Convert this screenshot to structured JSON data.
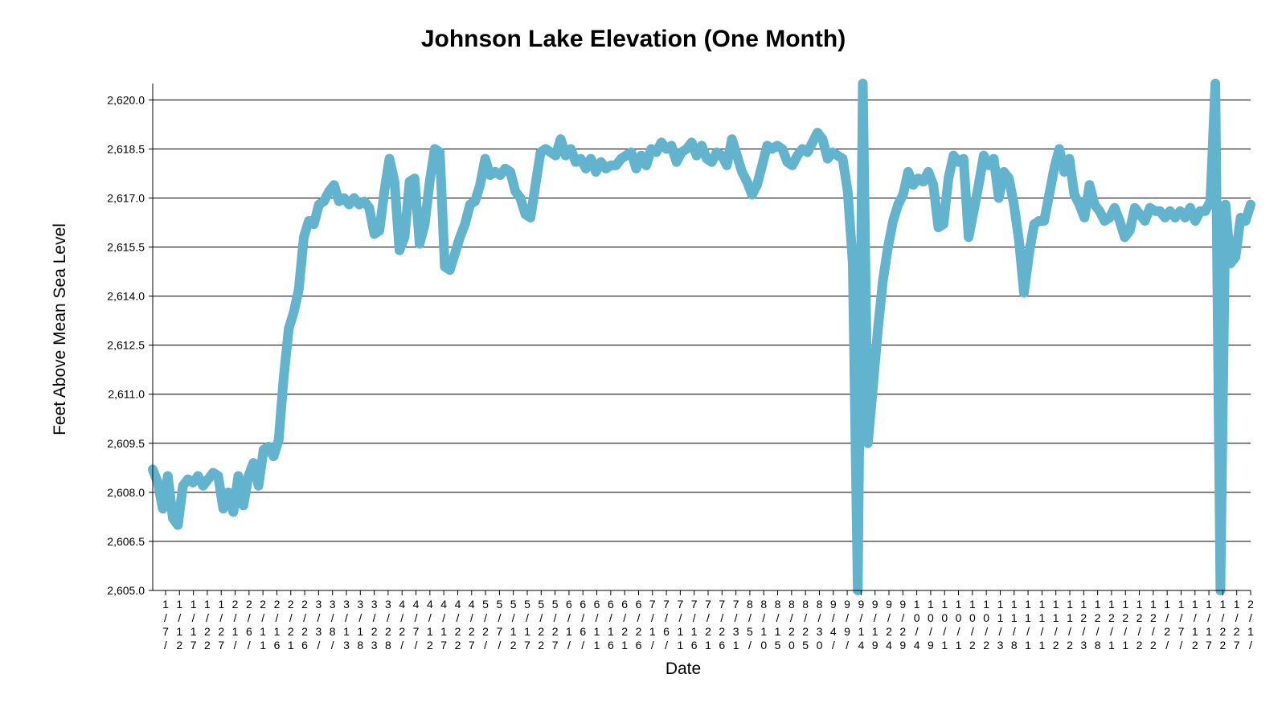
{
  "chart_data": {
    "type": "line",
    "title": "Johnson Lake Elevation (One Month)",
    "xlabel": "Date",
    "ylabel": "Feet Above Mean Sea Level",
    "ylim": [
      2605.0,
      2620.5
    ],
    "yticks": [
      "2,605.0",
      "2,606.5",
      "2,608.0",
      "2,609.5",
      "2,611.0",
      "2,612.5",
      "2,614.0",
      "2,615.5",
      "2,617.0",
      "2,618.5",
      "2,620.0"
    ],
    "ytick_values": [
      2605.0,
      2606.5,
      2608.0,
      2609.5,
      2611.0,
      2612.5,
      2614.0,
      2615.5,
      2617.0,
      2618.5,
      2620.0
    ],
    "grid": true,
    "line_color": "#62b3ce",
    "x_tick_labels": [
      "1/7/",
      "1/12",
      "1/17",
      "1/22",
      "1/27",
      "2/1/",
      "2/6/",
      "2/11",
      "2/16",
      "2/21",
      "2/26",
      "3/3/",
      "3/8/",
      "3/13",
      "3/18",
      "3/23",
      "3/28",
      "4/2/",
      "4/7/",
      "4/12",
      "4/17",
      "4/22",
      "4/27",
      "5/2/",
      "5/7/",
      "5/12",
      "5/17",
      "5/22",
      "5/27",
      "6/1/",
      "6/6/",
      "6/11",
      "6/16",
      "6/21",
      "6/26",
      "7/1/",
      "7/6/",
      "7/11",
      "7/16",
      "7/21",
      "7/26",
      "7/31",
      "8/5/",
      "8/10",
      "8/15",
      "8/20",
      "8/25",
      "8/30",
      "9/4/",
      "9/9/",
      "9/14",
      "9/19",
      "9/24",
      "9/29",
      "10/4",
      "10/9",
      "10/1",
      "10/1",
      "10/2",
      "10/2",
      "11/3",
      "11/8",
      "11/1",
      "11/1",
      "11/2",
      "11/2",
      "12/3",
      "12/8",
      "12/1",
      "12/1",
      "12/2",
      "12/2",
      "1/2/",
      "1/7/",
      "1/12",
      "1/17",
      "1/22",
      "1/27",
      "2/1/"
    ],
    "series": [
      {
        "values": [
          [
            0,
            2608.7
          ],
          [
            0.5,
            2608.3
          ],
          [
            1,
            2607.5
          ],
          [
            1.5,
            2608.5
          ],
          [
            2,
            2607.2
          ],
          [
            2.5,
            2607.0
          ],
          [
            3,
            2608.2
          ],
          [
            3.5,
            2608.4
          ],
          [
            4,
            2608.3
          ],
          [
            4.5,
            2608.5
          ],
          [
            5,
            2608.2
          ],
          [
            5.5,
            2608.4
          ],
          [
            6,
            2608.6
          ],
          [
            6.5,
            2608.5
          ],
          [
            7,
            2607.5
          ],
          [
            7.5,
            2608.0
          ],
          [
            8,
            2607.4
          ],
          [
            8.5,
            2608.5
          ],
          [
            9,
            2607.6
          ],
          [
            9.5,
            2608.5
          ],
          [
            10,
            2608.9
          ],
          [
            10.5,
            2608.2
          ],
          [
            11,
            2609.3
          ],
          [
            11.5,
            2609.4
          ],
          [
            12,
            2609.1
          ],
          [
            12.5,
            2609.6
          ],
          [
            13,
            2611.5
          ],
          [
            13.5,
            2613.0
          ],
          [
            14,
            2613.5
          ],
          [
            14.5,
            2614.2
          ],
          [
            15,
            2615.8
          ],
          [
            15.5,
            2616.3
          ],
          [
            16,
            2616.2
          ],
          [
            16.5,
            2616.8
          ],
          [
            17,
            2616.9
          ],
          [
            17.5,
            2617.2
          ],
          [
            18,
            2617.4
          ],
          [
            18.5,
            2616.9
          ],
          [
            19,
            2617.0
          ],
          [
            19.5,
            2616.8
          ],
          [
            20,
            2617.0
          ],
          [
            20.5,
            2616.8
          ],
          [
            21,
            2616.9
          ],
          [
            21.5,
            2616.7
          ],
          [
            22,
            2615.9
          ],
          [
            22.5,
            2616.0
          ],
          [
            23,
            2617.2
          ],
          [
            23.5,
            2618.2
          ],
          [
            24,
            2617.5
          ],
          [
            24.5,
            2615.4
          ],
          [
            25,
            2615.8
          ],
          [
            25.5,
            2617.5
          ],
          [
            26,
            2617.6
          ],
          [
            26.5,
            2615.6
          ],
          [
            27,
            2616.2
          ],
          [
            27.5,
            2617.5
          ],
          [
            28,
            2618.5
          ],
          [
            28.5,
            2618.4
          ],
          [
            29,
            2614.9
          ],
          [
            29.5,
            2614.8
          ],
          [
            30,
            2615.3
          ],
          [
            30.5,
            2615.8
          ],
          [
            31,
            2616.2
          ],
          [
            31.5,
            2616.8
          ],
          [
            32,
            2616.9
          ],
          [
            32.5,
            2617.4
          ],
          [
            33,
            2618.2
          ],
          [
            33.5,
            2617.7
          ],
          [
            34,
            2617.8
          ],
          [
            34.5,
            2617.7
          ],
          [
            35,
            2617.9
          ],
          [
            35.5,
            2617.8
          ],
          [
            36,
            2617.2
          ],
          [
            36.5,
            2617.0
          ],
          [
            37,
            2616.5
          ],
          [
            37.5,
            2616.4
          ],
          [
            38,
            2617.4
          ],
          [
            38.5,
            2618.4
          ],
          [
            39,
            2618.5
          ],
          [
            39.5,
            2618.4
          ],
          [
            40,
            2618.3
          ],
          [
            40.5,
            2618.8
          ],
          [
            41,
            2618.3
          ],
          [
            41.5,
            2618.5
          ],
          [
            42,
            2618.1
          ],
          [
            42.5,
            2618.2
          ],
          [
            43,
            2617.9
          ],
          [
            43.5,
            2618.2
          ],
          [
            44,
            2617.8
          ],
          [
            44.5,
            2618.1
          ],
          [
            45,
            2617.9
          ],
          [
            45.5,
            2618.0
          ],
          [
            46,
            2618.0
          ],
          [
            46.5,
            2618.2
          ],
          [
            47,
            2618.3
          ],
          [
            47.5,
            2618.4
          ],
          [
            48,
            2617.9
          ],
          [
            48.5,
            2618.3
          ],
          [
            49,
            2618.0
          ],
          [
            49.5,
            2618.5
          ],
          [
            50,
            2618.4
          ],
          [
            50.5,
            2618.7
          ],
          [
            51,
            2618.5
          ],
          [
            51.5,
            2618.6
          ],
          [
            52,
            2618.1
          ],
          [
            52.5,
            2618.4
          ],
          [
            53,
            2618.5
          ],
          [
            53.5,
            2618.7
          ],
          [
            54,
            2618.3
          ],
          [
            54.5,
            2618.6
          ],
          [
            55,
            2618.2
          ],
          [
            55.5,
            2618.1
          ],
          [
            56,
            2618.4
          ],
          [
            56.5,
            2618.3
          ],
          [
            57,
            2618.0
          ],
          [
            57.5,
            2618.8
          ],
          [
            58,
            2618.3
          ],
          [
            58.5,
            2617.8
          ],
          [
            59,
            2617.5
          ],
          [
            59.5,
            2617.1
          ],
          [
            60,
            2617.4
          ],
          [
            60.5,
            2618.0
          ],
          [
            61,
            2618.6
          ],
          [
            61.5,
            2618.5
          ],
          [
            62,
            2618.6
          ],
          [
            62.5,
            2618.5
          ],
          [
            63,
            2618.1
          ],
          [
            63.5,
            2618.0
          ],
          [
            64,
            2618.3
          ],
          [
            64.5,
            2618.5
          ],
          [
            65,
            2618.4
          ],
          [
            65.5,
            2618.7
          ],
          [
            66,
            2619.0
          ],
          [
            66.5,
            2618.8
          ],
          [
            67,
            2618.2
          ],
          [
            67.5,
            2618.4
          ],
          [
            68,
            2618.3
          ],
          [
            68.5,
            2618.2
          ],
          [
            69,
            2617.2
          ],
          [
            69.5,
            2615.0
          ],
          [
            70,
            2605.0
          ],
          [
            70.5,
            2620.5
          ],
          [
            71,
            2609.5
          ],
          [
            71.5,
            2611.2
          ],
          [
            72,
            2613.0
          ],
          [
            72.5,
            2614.5
          ],
          [
            73,
            2615.5
          ],
          [
            73.5,
            2616.3
          ],
          [
            74,
            2616.8
          ],
          [
            74.5,
            2617.1
          ],
          [
            75,
            2617.8
          ],
          [
            75.5,
            2617.4
          ],
          [
            76,
            2617.6
          ],
          [
            76.5,
            2617.5
          ],
          [
            77,
            2617.8
          ],
          [
            77.5,
            2617.4
          ],
          [
            78,
            2616.1
          ],
          [
            78.5,
            2616.2
          ],
          [
            79,
            2617.6
          ],
          [
            79.5,
            2618.3
          ],
          [
            80,
            2618.1
          ],
          [
            80.5,
            2618.2
          ],
          [
            81,
            2615.8
          ],
          [
            81.5,
            2616.6
          ],
          [
            82,
            2617.4
          ],
          [
            82.5,
            2618.3
          ],
          [
            83,
            2618.0
          ],
          [
            83.5,
            2618.2
          ],
          [
            84,
            2617.0
          ],
          [
            84.5,
            2617.8
          ],
          [
            85,
            2617.6
          ],
          [
            85.5,
            2616.8
          ],
          [
            86,
            2615.7
          ],
          [
            86.5,
            2614.1
          ],
          [
            87,
            2615.3
          ],
          [
            87.5,
            2616.2
          ],
          [
            88,
            2616.3
          ],
          [
            88.5,
            2616.3
          ],
          [
            89,
            2617.1
          ],
          [
            89.5,
            2617.9
          ],
          [
            90,
            2618.5
          ],
          [
            90.5,
            2617.8
          ],
          [
            91,
            2618.2
          ],
          [
            91.5,
            2617.1
          ],
          [
            92,
            2616.8
          ],
          [
            92.5,
            2616.4
          ],
          [
            93,
            2617.4
          ],
          [
            93.5,
            2616.8
          ],
          [
            94,
            2616.6
          ],
          [
            94.5,
            2616.3
          ],
          [
            95,
            2616.4
          ],
          [
            95.5,
            2616.7
          ],
          [
            96,
            2616.3
          ],
          [
            96.5,
            2615.8
          ],
          [
            97,
            2616.0
          ],
          [
            97.5,
            2616.7
          ],
          [
            98,
            2616.5
          ],
          [
            98.5,
            2616.3
          ],
          [
            99,
            2616.7
          ],
          [
            99.5,
            2616.6
          ],
          [
            100,
            2616.6
          ],
          [
            100.5,
            2616.4
          ],
          [
            101,
            2616.6
          ],
          [
            101.5,
            2616.4
          ],
          [
            102,
            2616.6
          ],
          [
            102.5,
            2616.4
          ],
          [
            103,
            2616.7
          ],
          [
            103.5,
            2616.3
          ],
          [
            104,
            2616.6
          ],
          [
            104.5,
            2616.6
          ],
          [
            105,
            2616.9
          ],
          [
            105.5,
            2620.5
          ],
          [
            106,
            2605.0
          ],
          [
            106.5,
            2616.8
          ],
          [
            107,
            2615.0
          ],
          [
            107.5,
            2615.2
          ],
          [
            108,
            2616.4
          ],
          [
            108.5,
            2616.3
          ],
          [
            109,
            2616.8
          ]
        ]
      }
    ]
  }
}
